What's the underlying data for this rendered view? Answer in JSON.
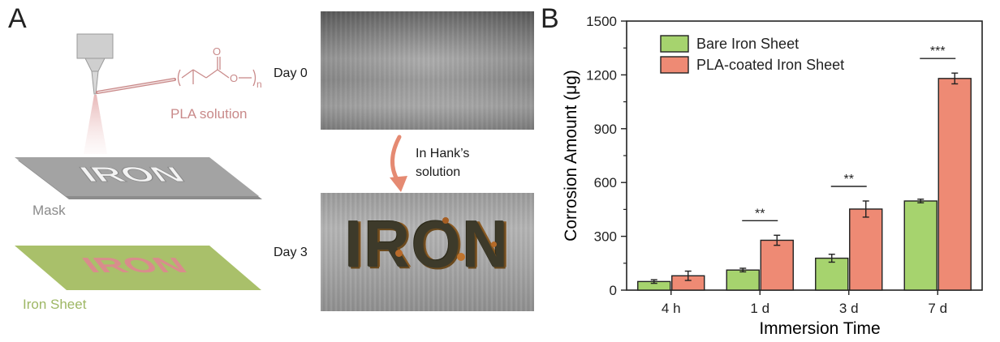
{
  "panel_a": {
    "letter": "A",
    "pla_formula_subscript": "n",
    "pla_label": "PLA solution",
    "mask_label": "Mask",
    "mask_text": "IRON",
    "sheet_label": "Iron Sheet",
    "sheet_text": "IRON",
    "day0_label": "Day 0",
    "day3_label": "Day 3",
    "arrow_label_line1": "In Hank’s",
    "arrow_label_line2": "solution",
    "photo_text": "IRON",
    "colors": {
      "pla": "#c98a8a",
      "mask": "#a3a3a3",
      "sheet": "#a9c06a",
      "sheet_text": "#d98c8c",
      "arrow": "#e58a72"
    }
  },
  "panel_b": {
    "letter": "B"
  },
  "chart_data": {
    "type": "bar",
    "categories": [
      "4 h",
      "1 d",
      "3 d",
      "7 d"
    ],
    "series": [
      {
        "name": "Bare Iron Sheet",
        "values": [
          48,
          112,
          178,
          497
        ],
        "errors": [
          10,
          10,
          22,
          10
        ],
        "color": "#a6d36e"
      },
      {
        "name": "PLA-coated Iron Sheet",
        "values": [
          80,
          278,
          452,
          1180
        ],
        "errors": [
          26,
          28,
          45,
          30
        ],
        "color": "#ee8a74"
      }
    ],
    "significance": [
      "",
      "**",
      "**",
      "***"
    ],
    "xlabel": "Immersion Time",
    "ylabel": "Corrosion Amount (μg)",
    "ylim": [
      0,
      1500
    ],
    "yticks": [
      0,
      300,
      600,
      900,
      1200,
      1500
    ],
    "grid": false,
    "legend_position": "top-left"
  }
}
